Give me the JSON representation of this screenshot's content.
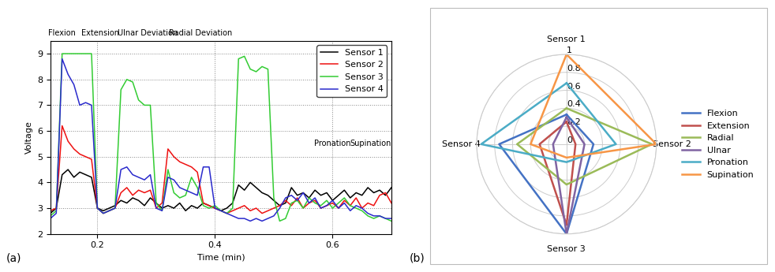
{
  "chart_data": [
    {
      "type": "line",
      "label": "(a)",
      "x_label": "Time (min)",
      "y_label": "Voltage",
      "x": [
        0.12,
        0.13,
        0.14,
        0.15,
        0.16,
        0.17,
        0.18,
        0.19,
        0.2,
        0.21,
        0.22,
        0.23,
        0.24,
        0.25,
        0.26,
        0.27,
        0.28,
        0.29,
        0.3,
        0.31,
        0.32,
        0.33,
        0.34,
        0.35,
        0.36,
        0.37,
        0.38,
        0.39,
        0.4,
        0.41,
        0.42,
        0.43,
        0.44,
        0.45,
        0.46,
        0.47,
        0.48,
        0.49,
        0.5,
        0.51,
        0.52,
        0.53,
        0.54,
        0.55,
        0.56,
        0.57,
        0.58,
        0.59,
        0.6,
        0.61,
        0.62,
        0.63,
        0.64,
        0.65,
        0.66,
        0.67,
        0.68,
        0.69,
        0.7
      ],
      "series": [
        {
          "name": "Sensor 1",
          "color": "#000000",
          "values": [
            2.8,
            3.0,
            4.3,
            4.5,
            4.2,
            4.4,
            4.3,
            4.2,
            3.0,
            2.9,
            3.0,
            3.1,
            3.3,
            3.2,
            3.4,
            3.3,
            3.1,
            3.4,
            3.2,
            3.0,
            3.1,
            3.0,
            3.2,
            2.9,
            3.1,
            3.0,
            3.2,
            3.1,
            3.0,
            2.9,
            3.0,
            3.2,
            3.9,
            3.7,
            4.0,
            3.8,
            3.6,
            3.5,
            3.3,
            3.1,
            3.2,
            3.8,
            3.5,
            3.6,
            3.4,
            3.7,
            3.5,
            3.6,
            3.3,
            3.5,
            3.7,
            3.4,
            3.6,
            3.5,
            3.8,
            3.6,
            3.7,
            3.5,
            3.8
          ]
        },
        {
          "name": "Sensor 2",
          "color": "#ee1111",
          "values": [
            2.9,
            3.0,
            6.2,
            5.6,
            5.3,
            5.1,
            5.0,
            4.9,
            3.0,
            2.8,
            2.9,
            3.0,
            3.6,
            3.8,
            3.5,
            3.7,
            3.6,
            3.7,
            3.0,
            3.2,
            5.3,
            5.0,
            4.8,
            4.7,
            4.6,
            4.4,
            3.2,
            3.1,
            3.0,
            2.9,
            2.8,
            2.9,
            3.0,
            3.1,
            2.9,
            3.0,
            2.8,
            2.9,
            3.0,
            3.1,
            3.3,
            3.1,
            3.4,
            3.0,
            3.2,
            3.3,
            3.0,
            3.1,
            3.2,
            3.0,
            3.3,
            3.1,
            3.4,
            3.0,
            3.2,
            3.1,
            3.5,
            3.6,
            3.2
          ]
        },
        {
          "name": "Sensor 3",
          "color": "#33cc33",
          "values": [
            2.7,
            2.9,
            9,
            9,
            9,
            9,
            9,
            9,
            3.0,
            2.8,
            2.9,
            3.0,
            7.6,
            8.0,
            7.9,
            7.2,
            7.0,
            7.0,
            3.2,
            2.9,
            4.5,
            3.6,
            3.4,
            3.5,
            4.2,
            3.8,
            3.1,
            3.0,
            3.1,
            2.9,
            2.8,
            3.0,
            8.8,
            8.9,
            8.4,
            8.3,
            8.5,
            8.4,
            3.4,
            2.5,
            2.6,
            3.2,
            3.3,
            3.0,
            3.4,
            3.2,
            3.1,
            3.3,
            3.0,
            3.2,
            3.4,
            3.1,
            3.0,
            2.9,
            2.7,
            2.6,
            2.7,
            2.6,
            2.5
          ]
        },
        {
          "name": "Sensor 4",
          "color": "#2a2acc",
          "values": [
            2.6,
            2.8,
            8.8,
            8.2,
            7.8,
            7.0,
            7.1,
            7.0,
            3.0,
            2.8,
            2.9,
            3.0,
            4.5,
            4.6,
            4.3,
            4.2,
            4.1,
            4.3,
            3.0,
            2.9,
            4.2,
            4.1,
            3.8,
            3.7,
            3.6,
            3.5,
            4.6,
            4.6,
            3.0,
            2.9,
            2.8,
            2.7,
            2.6,
            2.6,
            2.5,
            2.6,
            2.5,
            2.6,
            2.7,
            3.0,
            3.4,
            3.5,
            3.3,
            3.6,
            3.2,
            3.4,
            3.0,
            3.1,
            3.3,
            3.0,
            3.2,
            2.9,
            3.1,
            3.0,
            2.8,
            2.7,
            2.7,
            2.6,
            2.6
          ]
        }
      ],
      "xlim": [
        0.12,
        0.7
      ],
      "xticks": [
        0.2,
        0.4,
        0.6
      ],
      "ylim": [
        2,
        9.5
      ],
      "yticks": [
        2,
        3,
        4,
        5,
        6,
        7,
        8,
        9
      ],
      "grid": true,
      "legend": "upper right",
      "annotations": [
        "Flexion",
        "Extension",
        "Ulnar Deviation",
        "Radial Deviation",
        "Pronation",
        "Supination"
      ]
    },
    {
      "type": "radar",
      "label": "(b)",
      "categories": [
        "Sensor 1",
        "Sensor 2",
        "Sensor 3",
        "Sensor 4"
      ],
      "series": [
        {
          "name": "Flexion",
          "color": "#4472c4",
          "values": [
            0.33,
            0.3,
            1.0,
            0.75
          ]
        },
        {
          "name": "Extension",
          "color": "#c0504d",
          "values": [
            0.25,
            0.1,
            0.9,
            0.3
          ]
        },
        {
          "name": "Radial",
          "color": "#9bbb59",
          "values": [
            0.4,
            0.95,
            0.45,
            0.55
          ]
        },
        {
          "name": "Ulnar",
          "color": "#8064a2",
          "values": [
            0.3,
            0.2,
            1.0,
            0.15
          ]
        },
        {
          "name": "Pronation",
          "color": "#4bacc6",
          "values": [
            0.68,
            0.55,
            0.2,
            0.95
          ]
        },
        {
          "name": "Supination",
          "color": "#f79646",
          "values": [
            1.0,
            1.0,
            0.15,
            0.4
          ]
        }
      ],
      "ylim": [
        0,
        1
      ],
      "yticks": [
        0,
        0.2,
        0.4,
        0.6,
        0.8,
        1
      ],
      "grid": true,
      "legend": "right"
    }
  ]
}
